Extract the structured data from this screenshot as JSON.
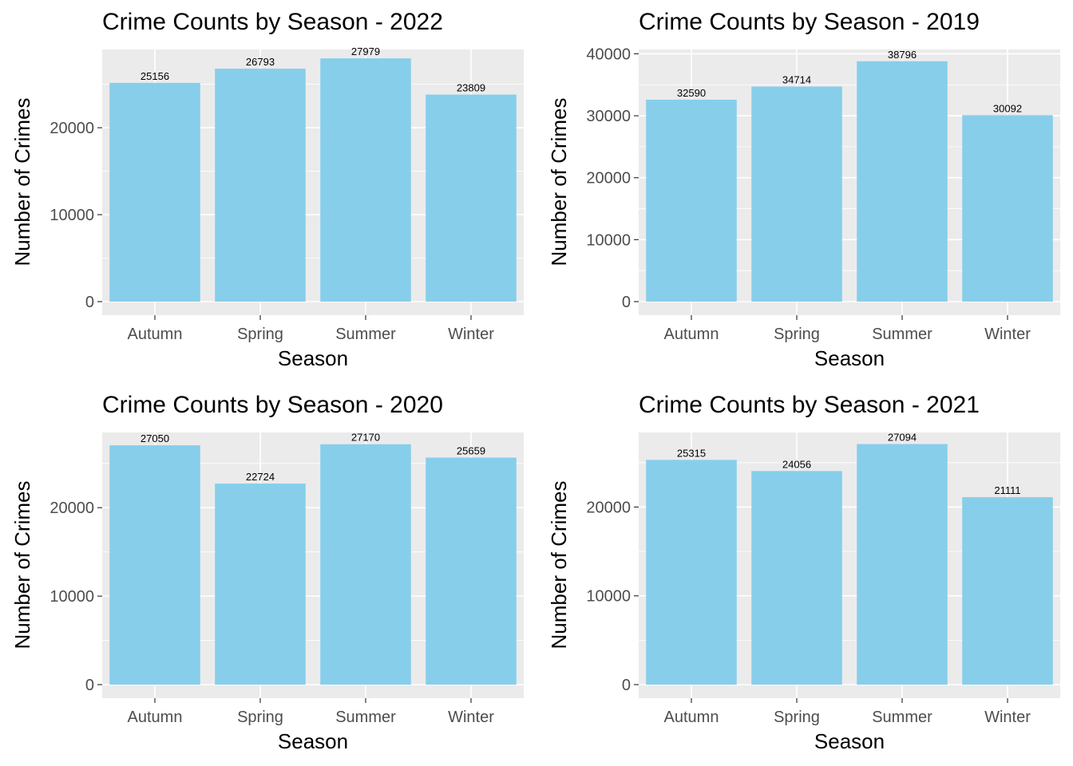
{
  "chart_data": [
    {
      "type": "bar",
      "title": "Crime Counts by Season - 2022",
      "xlabel": "Season",
      "ylabel": "Number of Crimes",
      "categories": [
        "Autumn",
        "Spring",
        "Summer",
        "Winter"
      ],
      "values": [
        25156,
        26793,
        27979,
        23809
      ],
      "ylim": [
        0,
        29000
      ],
      "yticks": [
        0,
        10000,
        20000
      ],
      "grid": true,
      "bar_color": "#87CEEB",
      "panel_background": "#EBEBEB"
    },
    {
      "type": "bar",
      "title": "Crime Counts by Season - 2019",
      "xlabel": "Season",
      "ylabel": "Number of Crimes",
      "categories": [
        "Autumn",
        "Spring",
        "Summer",
        "Winter"
      ],
      "values": [
        32590,
        34714,
        38796,
        30092
      ],
      "ylim": [
        0,
        40700
      ],
      "yticks": [
        0,
        10000,
        20000,
        30000,
        40000
      ],
      "grid": true,
      "bar_color": "#87CEEB",
      "panel_background": "#EBEBEB"
    },
    {
      "type": "bar",
      "title": "Crime Counts by Season - 2020",
      "xlabel": "Season",
      "ylabel": "Number of Crimes",
      "categories": [
        "Autumn",
        "Spring",
        "Summer",
        "Winter"
      ],
      "values": [
        27050,
        22724,
        27170,
        25659
      ],
      "ylim": [
        0,
        28500
      ],
      "yticks": [
        0,
        10000,
        20000
      ],
      "grid": true,
      "bar_color": "#87CEEB",
      "panel_background": "#EBEBEB"
    },
    {
      "type": "bar",
      "title": "Crime Counts by Season - 2021",
      "xlabel": "Season",
      "ylabel": "Number of Crimes",
      "categories": [
        "Autumn",
        "Spring",
        "Summer",
        "Winter"
      ],
      "values": [
        25315,
        24056,
        27094,
        21111
      ],
      "ylim": [
        0,
        28400
      ],
      "yticks": [
        0,
        10000,
        20000
      ],
      "grid": true,
      "bar_color": "#87CEEB",
      "panel_background": "#EBEBEB"
    }
  ]
}
